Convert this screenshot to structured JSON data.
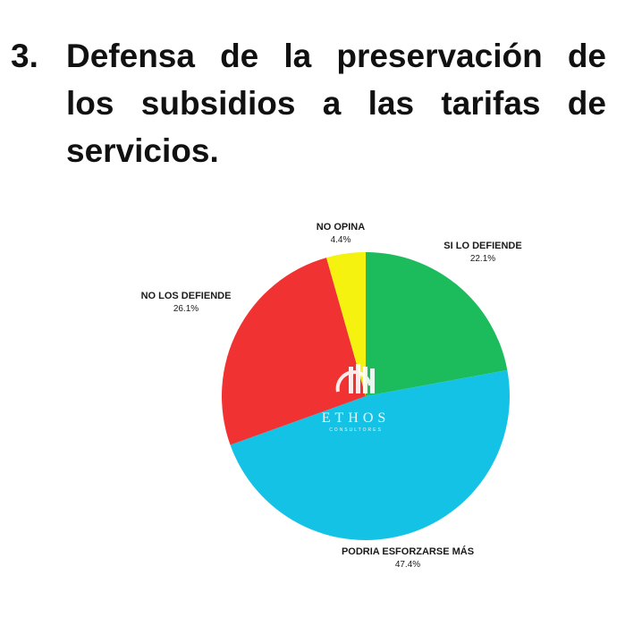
{
  "heading": {
    "number": "3.",
    "lines": [
      "Defensa de la preservación de",
      "los subsidios a las tarifas de",
      "servicios."
    ]
  },
  "logo": {
    "name": "ETHOS",
    "tagline": "CONSULTORES"
  },
  "colors": {
    "si_lo_defiende": "#1cbc5c",
    "podria": "#13c2e4",
    "no_los_defiende": "#f03232",
    "no_opina": "#f5f20f"
  },
  "chart_data": {
    "type": "pie",
    "start_angle_deg": 0,
    "direction": "clockwise",
    "slices": [
      {
        "label": "SI LO DEFIENDE",
        "value": 22.1,
        "display": "22.1%",
        "color": "#1cbc5c"
      },
      {
        "label": "PODRIA ESFORZARSE MÁS",
        "value": 47.4,
        "display": "47.4%",
        "color": "#13c2e4"
      },
      {
        "label": "NO LOS DEFIENDE",
        "value": 26.1,
        "display": "26.1%",
        "color": "#f03232"
      },
      {
        "label": "NO OPINA",
        "value": 4.4,
        "display": "4.4%",
        "color": "#f5f20f"
      }
    ]
  }
}
